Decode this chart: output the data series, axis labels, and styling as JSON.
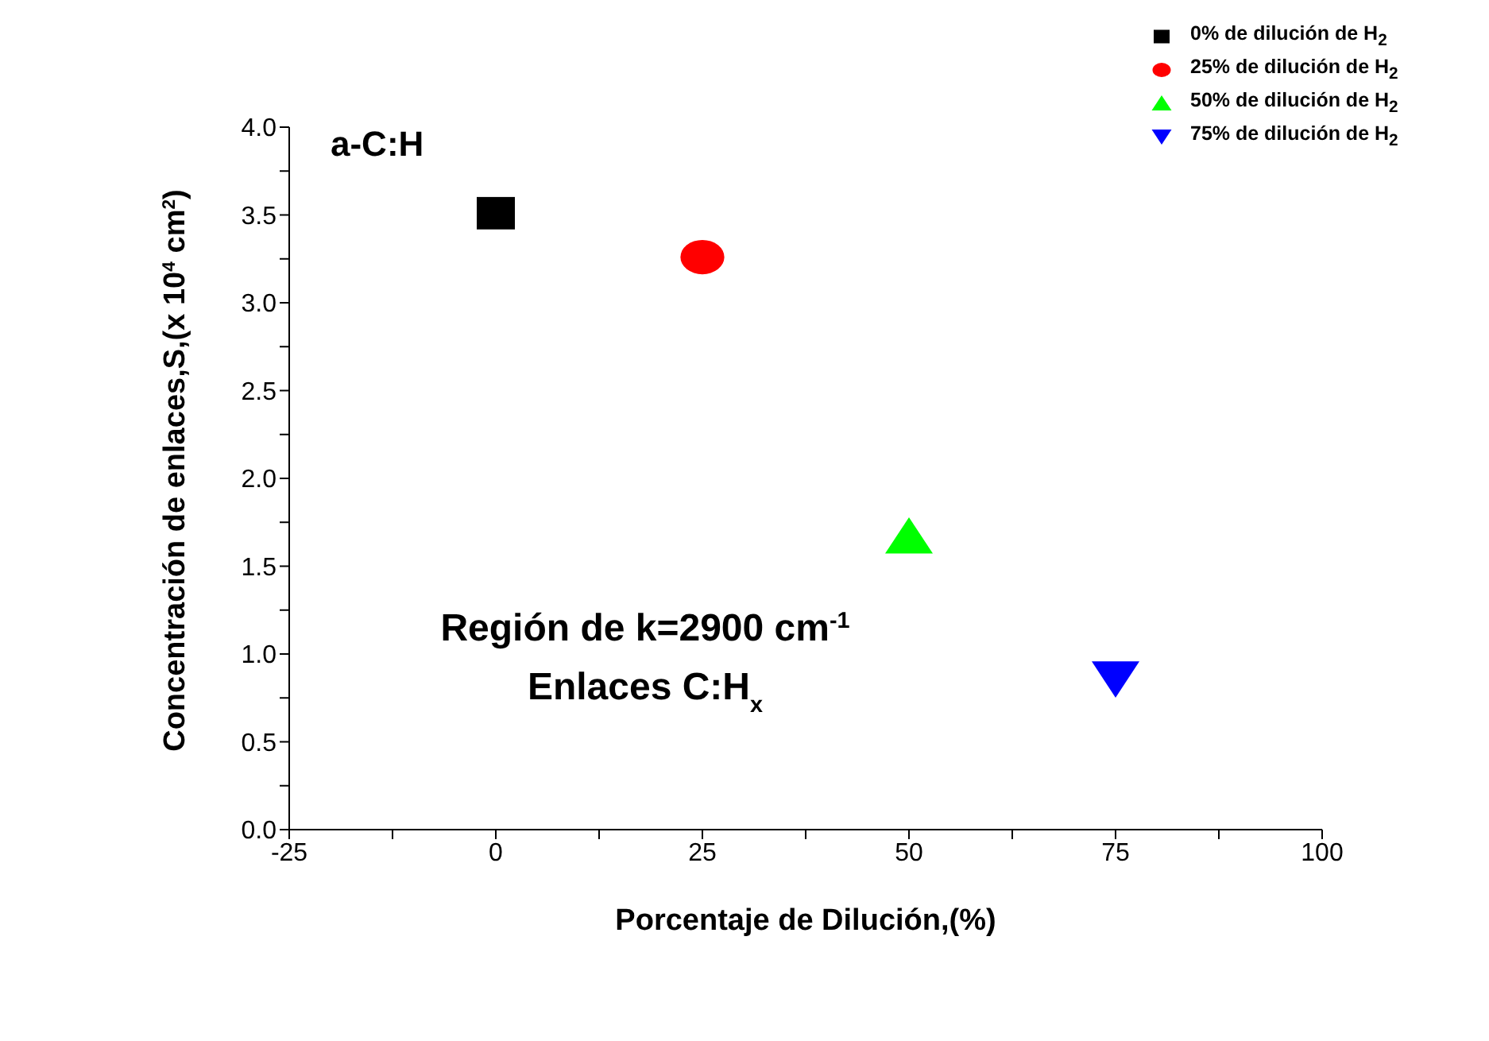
{
  "chart_data": {
    "type": "scatter",
    "xlabel": "Porcentaje de Dilución,(%)",
    "ylabel": "Concentración de enlaces,S,(x 10$^{4}$ cm$^{2}$)",
    "annotations": [
      "a-C:H",
      "Región de k=2900 cm$^{-1}$",
      "Enlaces C:H$_{x}$"
    ],
    "xlim": [
      -25,
      100
    ],
    "xticks": [
      -25,
      {
        "value": -12.5,
        "label": null
      },
      0,
      {
        "value": 12.5,
        "label": null
      },
      25,
      {
        "value": 37.5,
        "label": null
      },
      50,
      {
        "value": 62.5,
        "label": null
      },
      75,
      {
        "value": 87.5,
        "label": null
      },
      100
    ],
    "ylim": [
      0,
      4
    ],
    "yticks": [
      {
        "value": 0,
        "label": "0.0"
      },
      {
        "value": 0.25,
        "label": null
      },
      {
        "value": 0.5,
        "label": "0.5"
      },
      {
        "value": 0.75,
        "label": null
      },
      {
        "value": 1,
        "label": "1.0"
      },
      {
        "value": 1.25,
        "label": null
      },
      {
        "value": 1.5,
        "label": "1.5"
      },
      {
        "value": 1.75,
        "label": null
      },
      {
        "value": 2,
        "label": "2.0"
      },
      {
        "value": 2.25,
        "label": null
      },
      {
        "value": 2.5,
        "label": "2.5"
      },
      {
        "value": 2.75,
        "label": null
      },
      {
        "value": 3,
        "label": "3.0"
      },
      {
        "value": 3.25,
        "label": null
      },
      {
        "value": 3.5,
        "label": "3.5"
      },
      {
        "value": 3.75,
        "label": null
      },
      {
        "value": 4,
        "label": "4.0"
      }
    ],
    "grid": false,
    "legend": "top right",
    "series": [
      {
        "name": "0% de dilución de H$_{2}$",
        "color": "#000000",
        "marker": "square",
        "x": [
          0
        ],
        "values": [
          3.51
        ]
      },
      {
        "name": "25% de dilución de H$_{2}$",
        "color": "#ff0000",
        "marker": "circle",
        "x": [
          25
        ],
        "values": [
          3.26
        ]
      },
      {
        "name": "50% de dilución de H$_{2}$",
        "color": "#00ff00",
        "marker": "triangle",
        "x": [
          50
        ],
        "values": [
          1.67
        ]
      },
      {
        "name": "75% de dilución de H$_{2}$",
        "color": "#0000ff",
        "marker": "triangle-down",
        "x": [
          75
        ],
        "values": [
          0.86
        ]
      }
    ]
  }
}
